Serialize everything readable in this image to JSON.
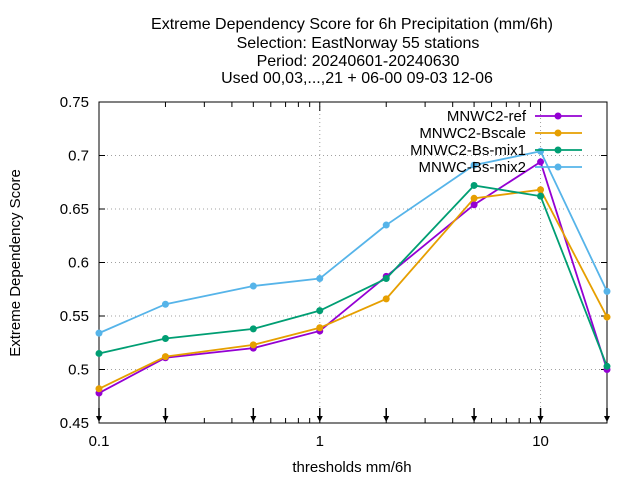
{
  "chart_data": {
    "type": "line",
    "title_lines": [
      "Extreme Dependency Score  for 6h Precipitation (mm/6h)",
      "Selection: EastNorway     55 stations",
      "Period: 20240601-20240630",
      "Used 00,03,...,21 + 06-00 09-03 12-06"
    ],
    "xlabel": "thresholds mm/6h",
    "ylabel": "Extreme Dependency Score",
    "x_scale": "log",
    "xlim": [
      0.1,
      20
    ],
    "ylim": [
      0.45,
      0.75
    ],
    "x_ticks": [
      0.1,
      1,
      10
    ],
    "x_tick_labels": [
      "0.1",
      "1",
      "10"
    ],
    "y_ticks": [
      0.45,
      0.5,
      0.55,
      0.6,
      0.65,
      0.7,
      0.75
    ],
    "y_tick_labels": [
      "0.45",
      "0.5",
      "0.55",
      "0.6",
      "0.65",
      "0.7",
      "0.75"
    ],
    "grid": true,
    "legend_position": "top-right",
    "x": [
      0.1,
      0.2,
      0.5,
      1,
      2,
      5,
      10,
      20
    ],
    "series": [
      {
        "name": "MNWC2-ref",
        "color": "#9400d3",
        "marker": "circle",
        "values": [
          0.478,
          0.511,
          0.52,
          0.536,
          0.587,
          0.654,
          0.694,
          0.5
        ]
      },
      {
        "name": "MNWC2-Bscale",
        "color": "#e69f00",
        "marker": "circle",
        "values": [
          0.482,
          0.512,
          0.523,
          0.539,
          0.566,
          0.66,
          0.668,
          0.549
        ]
      },
      {
        "name": "MNWC2-Bs-mix1",
        "color": "#009e73",
        "marker": "circle",
        "values": [
          0.515,
          0.529,
          0.538,
          0.555,
          0.585,
          0.672,
          0.662,
          0.503
        ]
      },
      {
        "name": "MNWC-Bs-mix2",
        "color": "#56b4e9",
        "marker": "circle",
        "values": [
          0.534,
          0.561,
          0.578,
          0.585,
          0.635,
          0.691,
          0.704,
          0.573
        ]
      }
    ]
  }
}
